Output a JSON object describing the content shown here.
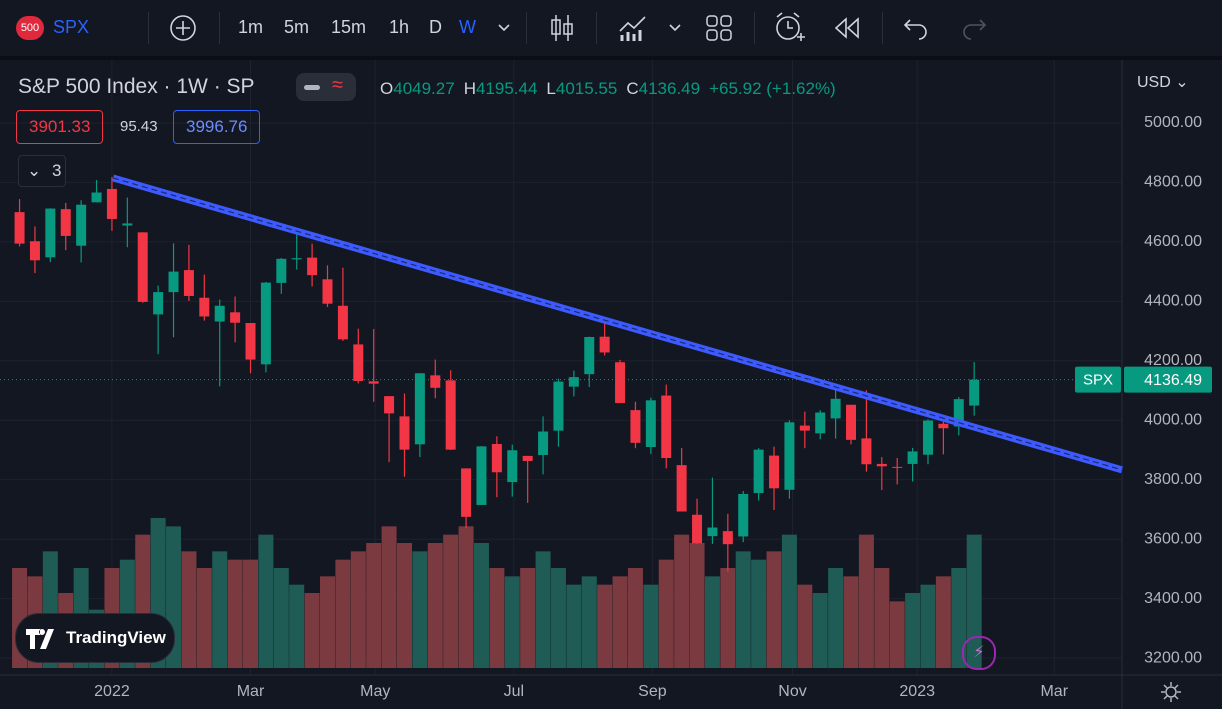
{
  "toolbar": {
    "symbol_badge": "500",
    "symbol": "SPX",
    "intervals": [
      "1m",
      "5m",
      "15m",
      "1h",
      "D",
      "W"
    ],
    "active_interval": "W"
  },
  "legend": {
    "title": "S&P 500 Index · 1W · SP",
    "ohlc_labels": [
      "O",
      "H",
      "L",
      "C"
    ],
    "change": "+65.92 (+1.62%)",
    "indicator_values": [
      3901.33,
      95.43,
      3996.76
    ],
    "collapsed_count": 3
  },
  "branding": "TradingView",
  "chart_data": {
    "type": "candlestick",
    "currency": "USD",
    "candles": {
      "open": [
        4700,
        4602,
        4548,
        4710,
        4587,
        4733,
        4778,
        4655,
        4632,
        4356,
        4431,
        4505,
        4412,
        4332,
        4363,
        4327,
        4188,
        4462,
        4541,
        4547,
        4474,
        4385,
        4255,
        4131,
        4081,
        4013,
        3919,
        4151,
        4134,
        3838,
        3715,
        3920,
        3792,
        3880,
        3883,
        3965,
        4113,
        4155,
        4281,
        4195,
        4034,
        3910,
        4083,
        3849,
        3682,
        3610,
        3627,
        3609,
        3755,
        3881,
        3766,
        3982,
        3956,
        4006,
        4052,
        3939,
        3853,
        3843,
        3853,
        3884,
        3988,
        3979,
        4049.27
      ],
      "high": [
        4744,
        4652,
        4713,
        4731,
        4740,
        4808,
        4818,
        4749,
        4632,
        4453,
        4595,
        4590,
        4490,
        4406,
        4416,
        4327,
        4465,
        4546,
        4637,
        4594,
        4521,
        4513,
        4308,
        4307,
        4081,
        4090,
        4158,
        4204,
        4168,
        3838,
        3913,
        3946,
        3918,
        3880,
        4013,
        4140,
        4167,
        4281,
        4325,
        4203,
        4062,
        4076,
        4120,
        3907,
        3736,
        3807,
        3685,
        3762,
        3906,
        3911,
        4000,
        4029,
        4034,
        4100,
        4052,
        4101,
        3876,
        3873,
        3907,
        4003,
        4015,
        4078,
        4195.44
      ],
      "low": [
        4585,
        4495,
        4532,
        4572,
        4531,
        4733,
        4637,
        4582,
        4395,
        4222,
        4279,
        4401,
        4335,
        4114,
        4262,
        4158,
        4161,
        4425,
        4507,
        4450,
        4381,
        4267,
        4124,
        4062,
        3859,
        3810,
        3876,
        4074,
        3900,
        3637,
        3715,
        3741,
        3743,
        3722,
        3818,
        3911,
        4080,
        4112,
        4218,
        4058,
        3906,
        3886,
        3838,
        3693,
        3584,
        3584,
        3491,
        3590,
        3730,
        3698,
        3736,
        3906,
        3936,
        3938,
        3919,
        3827,
        3765,
        3784,
        3794,
        3852,
        3885,
        3949,
        4015.55
      ],
      "close": [
        4594,
        4538,
        4712,
        4620,
        4725,
        4766,
        4677,
        4662,
        4398,
        4431,
        4500,
        4418,
        4349,
        4385,
        4328,
        4204,
        4463,
        4543,
        4545,
        4488,
        4392,
        4272,
        4132,
        4123,
        4023,
        3901,
        4158,
        4109,
        3901,
        3675,
        3912,
        3825,
        3899,
        3863,
        3962,
        4130,
        4145,
        4280,
        4228,
        4058,
        3924,
        4067,
        3873,
        3693,
        3586,
        3639,
        3583,
        3752,
        3901,
        3771,
        3993,
        3965,
        4026,
        4072,
        3934,
        3852,
        3845,
        3840,
        3895,
        3999,
        3973,
        4071,
        4136.49
      ]
    },
    "volume": [
      12,
      11,
      14,
      9,
      12,
      7,
      12,
      13,
      16,
      18,
      17,
      14,
      12,
      14,
      13,
      13,
      16,
      12,
      10,
      9,
      11,
      13,
      14,
      15,
      17,
      15,
      14,
      15,
      16,
      17,
      15,
      12,
      11,
      12,
      14,
      12,
      10,
      11,
      10,
      11,
      12,
      10,
      13,
      16,
      15,
      11,
      12,
      14,
      13,
      14,
      16,
      10,
      9,
      12,
      11,
      16,
      12,
      8,
      9,
      10,
      11,
      12,
      16
    ],
    "trendline": {
      "start": [
        6.07,
        4815
      ],
      "end": [
        71.6,
        3833
      ],
      "color": "#3d5afe"
    },
    "up_color": "#089981",
    "down_color": "#f23645",
    "xlim": [
      -1.27,
      71.6
    ],
    "xticks": [
      {
        "value": 6,
        "label": "2022"
      },
      {
        "value": 15,
        "label": "Mar"
      },
      {
        "value": 23.1,
        "label": "May"
      },
      {
        "value": 32.1,
        "label": "Jul"
      },
      {
        "value": 41.1,
        "label": "Sep"
      },
      {
        "value": 50.2,
        "label": "Nov"
      },
      {
        "value": 58.3,
        "label": "2023"
      },
      {
        "value": 67.2,
        "label": "Mar"
      }
    ],
    "ylim": [
      3143,
      5205
    ],
    "yticks": [
      {
        "value": 3200,
        "label": "3200.00"
      },
      {
        "value": 3400,
        "label": "3400.00"
      },
      {
        "value": 3600,
        "label": "3600.00"
      },
      {
        "value": 3800,
        "label": "3800.00"
      },
      {
        "value": 4000,
        "label": "4000.00"
      },
      {
        "value": 4200,
        "label": "4200.00"
      },
      {
        "value": 4400,
        "label": "4400.00"
      },
      {
        "value": 4600,
        "label": "4600.00"
      },
      {
        "value": 4800,
        "label": "4800.00"
      },
      {
        "value": 5000,
        "label": "5000.00"
      }
    ],
    "grid": true
  }
}
